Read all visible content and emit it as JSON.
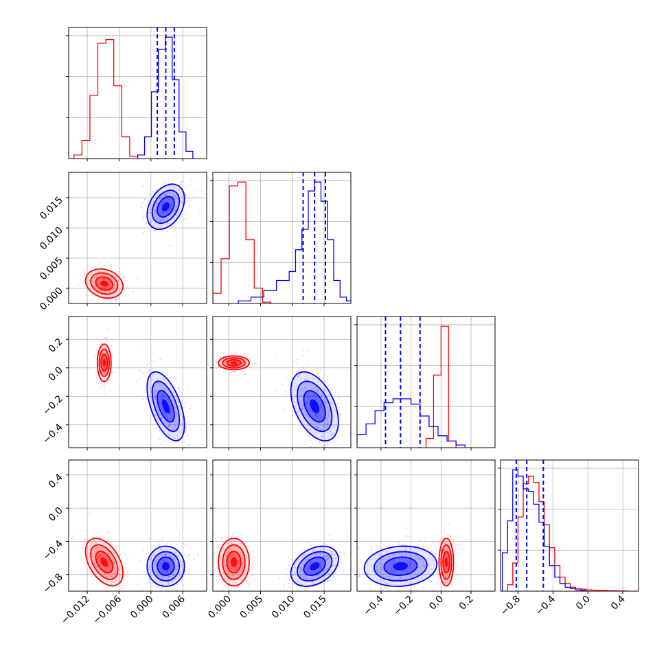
{
  "chart_data": {
    "type": "corner",
    "parameters": [
      "p0",
      "p1",
      "p2",
      "p3"
    ],
    "ranges": [
      [
        -0.0155,
        0.0105
      ],
      [
        -0.0025,
        0.0192
      ],
      [
        -0.56,
        0.36
      ],
      [
        -1.0,
        0.58
      ]
    ],
    "x_ticks": [
      {
        "values": [
          -0.012,
          -0.006,
          0.0,
          0.006
        ],
        "labels": [
          "−0.012",
          "−0.006",
          "0.000",
          "0.006"
        ]
      },
      {
        "values": [
          0.0,
          0.005,
          0.01,
          0.015
        ],
        "labels": [
          "0.000",
          "0.005",
          "0.010",
          "0.015"
        ]
      },
      {
        "values": [
          -0.4,
          -0.2,
          0.0,
          0.2
        ],
        "labels": [
          "−0.4",
          "−0.2",
          "0.0",
          "0.2"
        ]
      },
      {
        "values": [
          -0.8,
          -0.4,
          0.0,
          0.4
        ],
        "labels": [
          "−0.8",
          "−0.4",
          "0.0",
          "0.4"
        ]
      }
    ],
    "y_ticks": [
      null,
      {
        "values": [
          0.0,
          0.005,
          0.01,
          0.015
        ],
        "labels": [
          "0.000",
          "0.005",
          "0.010",
          "0.015"
        ]
      },
      {
        "values": [
          -0.4,
          -0.2,
          0.0,
          0.2
        ],
        "labels": [
          "−0.4",
          "−0.2",
          "0.0",
          "0.2"
        ]
      },
      {
        "values": [
          -0.8,
          -0.4,
          0.0,
          0.4
        ],
        "labels": [
          "−0.8",
          "−0.4",
          "0.0",
          "0.4"
        ]
      }
    ],
    "grid": true,
    "series": [
      {
        "color": "#ff0000",
        "means": [
          -0.0088,
          0.0008,
          0.035,
          -0.65
        ],
        "sigmas": [
          0.0016,
          0.0011,
          0.022,
          0.13
        ],
        "correlations": {
          "0-1": -0.2,
          "0-2": 0.0,
          "1-2": 0.0,
          "0-3": -0.45,
          "1-3": 0.0,
          "2-3": 0.0
        },
        "histograms": [
          {
            "edges": [
              -0.0145,
              -0.013,
              -0.0115,
              -0.01,
              -0.0085,
              -0.007,
              -0.0055,
              -0.004,
              -0.0025
            ],
            "counts": [
              3,
              15,
              52,
              95,
              98,
              60,
              18,
              2
            ]
          },
          {
            "edges": [
              -0.0025,
              -0.0012,
              0.0001,
              0.0014,
              0.0027,
              0.004,
              0.0053,
              0.0066
            ],
            "counts": [
              8,
              35,
              92,
              95,
              50,
              12,
              1
            ]
          },
          {
            "edges": [
              -0.1,
              -0.05,
              0.0,
              0.05,
              0.1
            ],
            "counts": [
              7,
              55,
              92,
              5
            ]
          },
          {
            "edges": [
              -0.92,
              -0.86,
              -0.8,
              -0.74,
              -0.68,
              -0.62,
              -0.56,
              -0.5,
              -0.44,
              -0.38,
              -0.32,
              -0.26,
              -0.2,
              -0.14,
              -0.08,
              -0.02,
              0.04,
              0.1,
              0.16,
              0.22,
              0.28,
              0.34,
              0.4,
              0.46
            ],
            "counts": [
              5,
              22,
              58,
              84,
              90,
              85,
              70,
              52,
              34,
              20,
              11,
              6,
              3,
              2,
              1.5,
              1,
              0.8,
              0.6,
              0.5,
              0.4,
              0.3,
              0.2,
              0.2
            ]
          }
        ]
      },
      {
        "color": "#0000ff",
        "means": [
          0.0028,
          0.0135,
          -0.27,
          -0.7
        ],
        "sigmas": [
          0.0016,
          0.0017,
          0.11,
          0.11
        ],
        "correlations": {
          "0-1": 0.35,
          "0-2": -0.55,
          "1-2": -0.45,
          "0-3": 0.0,
          "1-3": 0.35,
          "2-3": 0.1
        },
        "quantiles": [
          [
            0.0012,
            0.0028,
            0.0044
          ],
          [
            0.0117,
            0.0135,
            0.0152
          ],
          [
            -0.37,
            -0.27,
            -0.14
          ],
          [
            -0.82,
            -0.7,
            -0.51
          ]
        ],
        "histograms": [
          {
            "edges": [
              -0.0025,
              -0.0012,
              0.0001,
              0.0014,
              0.0027,
              0.004,
              0.0053,
              0.0066,
              0.0079
            ],
            "counts": [
              3,
              18,
              55,
              90,
              100,
              65,
              22,
              6
            ]
          },
          {
            "edges": [
              0.0015,
              0.0035,
              0.0055,
              0.0075,
              0.0095,
              0.0105,
              0.0115,
              0.0125,
              0.0135,
              0.0145,
              0.0155,
              0.0165,
              0.0175,
              0.0185,
              0.0195
            ],
            "counts": [
              2,
              5,
              10,
              18,
              25,
              42,
              58,
              88,
              95,
              80,
              50,
              18,
              5,
              2
            ]
          },
          {
            "edges": [
              -0.62,
              -0.56,
              -0.5,
              -0.44,
              -0.38,
              -0.32,
              -0.26,
              -0.2,
              -0.14,
              -0.08,
              -0.02,
              0.04,
              0.1,
              0.16
            ],
            "counts": [
              4,
              10,
              18,
              28,
              34,
              37,
              37,
              33,
              24,
              16,
              9,
              5,
              2
            ]
          },
          {
            "edges": [
              -0.98,
              -0.92,
              -0.86,
              -0.8,
              -0.74,
              -0.68,
              -0.62,
              -0.56,
              -0.5,
              -0.44,
              -0.38,
              -0.32,
              -0.26,
              -0.2,
              -0.14,
              -0.08,
              -0.02
            ],
            "counts": [
              30,
              55,
              95,
              90,
              80,
              78,
              68,
              54,
              35,
              20,
              11,
              6,
              3,
              2,
              1,
              0.5
            ]
          }
        ]
      }
    ]
  }
}
